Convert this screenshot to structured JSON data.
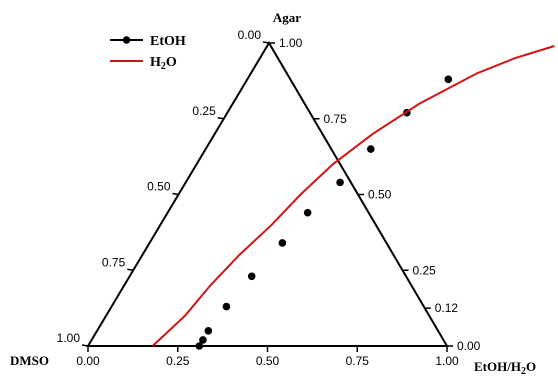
{
  "chart_data": {
    "type": "ternary",
    "vertices": {
      "top": "Agar",
      "left": "DMSO",
      "right_main": "EtOH/H",
      "right_sub": "2",
      "right_tail": "O"
    },
    "ticks": {
      "bottom": [
        "0.00",
        "0.25",
        "0.50",
        "0.75",
        "1.00"
      ],
      "left": [
        "0.00",
        "0.25",
        "0.50",
        "0.75",
        "1.00"
      ],
      "right": [
        "1.00",
        "0.75",
        "0.50",
        "0.25",
        "0.12",
        "0.00"
      ]
    },
    "legend": [
      {
        "name_main": "EtOH",
        "name_sub": "",
        "name_tail": "",
        "color": "#000000",
        "style": "line-marker"
      },
      {
        "name_main": "H",
        "name_sub": "2",
        "name_tail": "O",
        "color": "#d21414",
        "style": "line"
      }
    ],
    "series": [
      {
        "name": "EtOH",
        "style": "markers",
        "color": "#000000",
        "points": [
          {
            "agar": 0.88,
            "solvent": 0.56
          },
          {
            "agar": 0.77,
            "solvent": 0.5
          },
          {
            "agar": 0.65,
            "solvent": 0.46
          },
          {
            "agar": 0.54,
            "solvent": 0.43
          },
          {
            "agar": 0.44,
            "solvent": 0.39
          },
          {
            "agar": 0.34,
            "solvent": 0.37
          },
          {
            "agar": 0.23,
            "solvent": 0.34
          },
          {
            "agar": 0.13,
            "solvent": 0.32
          },
          {
            "agar": 0.05,
            "solvent": 0.31
          },
          {
            "agar": 0.02,
            "solvent": 0.31
          },
          {
            "agar": 0.0,
            "solvent": 0.31
          }
        ]
      },
      {
        "name": "H2O",
        "style": "line",
        "color": "#d21414",
        "points": [
          {
            "agar": 0.0,
            "solvent": 0.18
          },
          {
            "agar": 0.1,
            "solvent": 0.22
          },
          {
            "agar": 0.2,
            "solvent": 0.24
          },
          {
            "agar": 0.3,
            "solvent": 0.27
          },
          {
            "agar": 0.4,
            "solvent": 0.31
          },
          {
            "agar": 0.5,
            "solvent": 0.34
          },
          {
            "agar": 0.6,
            "solvent": 0.38
          },
          {
            "agar": 0.7,
            "solvent": 0.44
          },
          {
            "agar": 0.8,
            "solvent": 0.52
          },
          {
            "agar": 0.9,
            "solvent": 0.63
          },
          {
            "agar": 0.95,
            "solvent": 0.71
          },
          {
            "agar": 0.99,
            "solvent": 0.8
          }
        ]
      }
    ]
  }
}
